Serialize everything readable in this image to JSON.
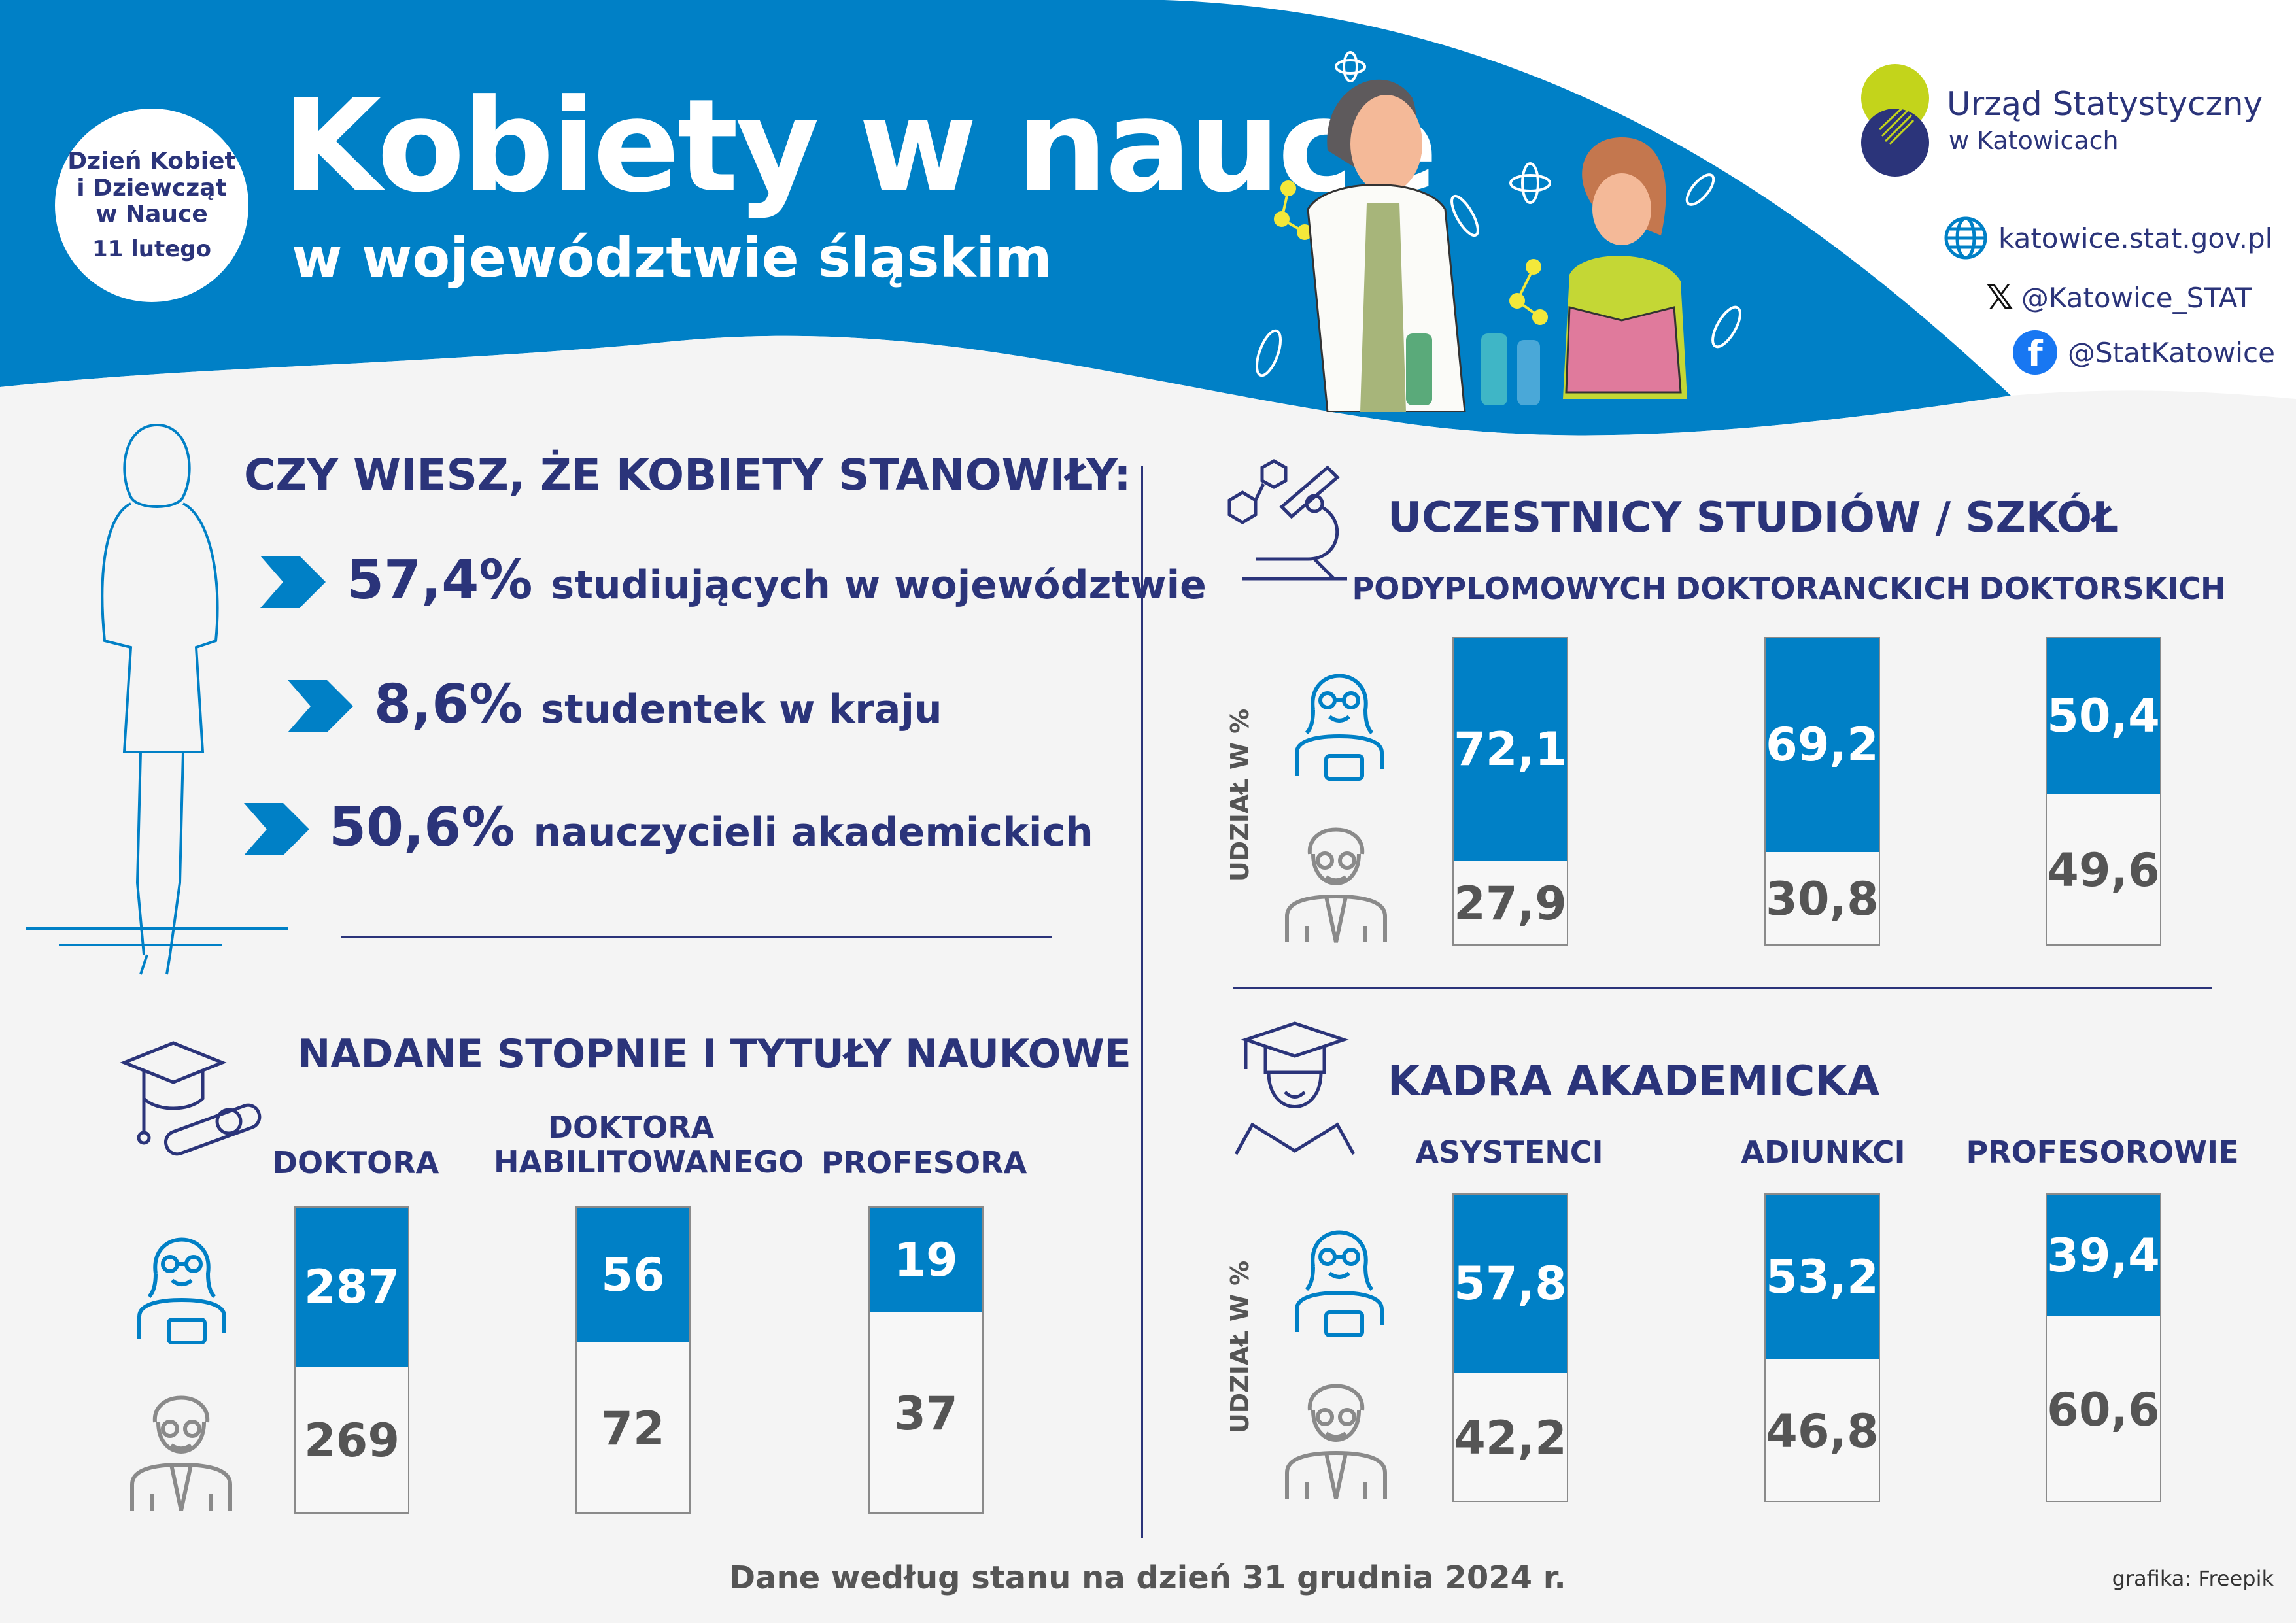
{
  "header": {
    "badge": [
      "Dzień Kobiet",
      "i Dziewcząt",
      "w Nauce",
      "11 lutego"
    ],
    "title": "Kobiety w nauce",
    "subtitle": "w województwie śląskim",
    "org_name": "Urząd Statystyczny",
    "org_sub": "w Katowicach",
    "links": [
      {
        "icon": "globe-icon",
        "text": "katowice.stat.gov.pl"
      },
      {
        "icon": "x-icon",
        "text": "@Katowice_STAT"
      },
      {
        "icon": "facebook-icon",
        "text": "@StatKatowice"
      }
    ]
  },
  "colors": {
    "blue": "#0080c6",
    "navy": "#2b347a",
    "grey": "#555555",
    "lime": "#c3d41b"
  },
  "facts": {
    "title": "CZY WIESZ, ŻE KOBIETY STANOWIŁY:",
    "items": [
      {
        "value": "57,4%",
        "text": "studiujących w województwie"
      },
      {
        "value": "8,6%",
        "text": "studentek w kraju"
      },
      {
        "value": "50,6%",
        "text": "nauczycieli akademickich"
      }
    ]
  },
  "chart_data": [
    {
      "type": "bar",
      "title": "NADANE STOPNIE I TYTUŁY NAUKOWE",
      "categories": [
        "DOKTORA",
        "DOKTORA HABILITOWANEGO",
        "PROFESORA"
      ],
      "series": [
        {
          "values": [
            287,
            56,
            19
          ],
          "color": "#0080c6"
        },
        {
          "values": [
            269,
            72,
            37
          ],
          "color": "#f7f7f7"
        }
      ],
      "ylabel": ""
    },
    {
      "type": "bar",
      "title": "UCZESTNICY STUDIÓW / SZKÓŁ",
      "categories": [
        "PODYPLOMOWYCH",
        "DOKTORANCKICH",
        "DOKTORSKICH"
      ],
      "series": [
        {
          "values": [
            "72,1",
            "69,2",
            "50,4"
          ],
          "color": "#0080c6"
        },
        {
          "values": [
            "27,9",
            "30,8",
            "49,6"
          ],
          "color": "#f7f7f7"
        }
      ],
      "ylabel": "UDZIAŁ W %"
    },
    {
      "type": "bar",
      "title": "KADRA AKADEMICKA",
      "categories": [
        "ASYSTENCI",
        "ADIUNKCI",
        "PROFESOROWIE"
      ],
      "series": [
        {
          "values": [
            "57,8",
            "53,2",
            "39,4"
          ],
          "color": "#0080c6"
        },
        {
          "values": [
            "42,2",
            "46,8",
            "60,6"
          ],
          "color": "#f7f7f7"
        }
      ],
      "ylabel": "UDZIAŁ W %"
    }
  ],
  "footer": {
    "note": "Dane według stanu na dzień 31 grudnia 2024 r.",
    "credit": "grafika: Freepik"
  }
}
